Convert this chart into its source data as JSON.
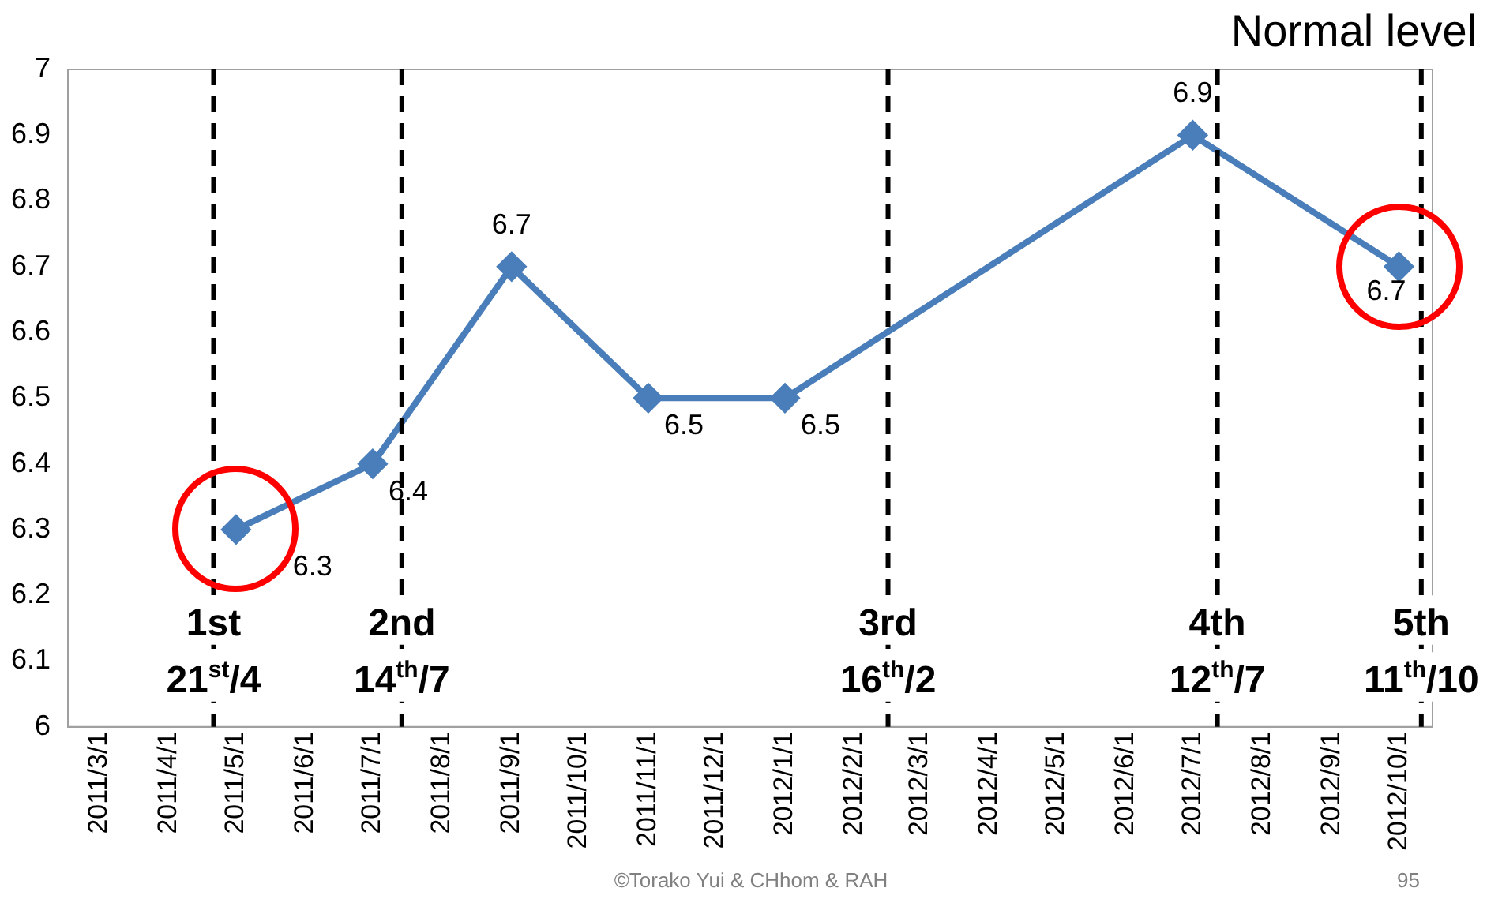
{
  "chart_data": {
    "type": "line",
    "x": [
      "2011-05",
      "2011-07",
      "2011-09",
      "2011-11",
      "2012-01",
      "2012-07",
      "2012-10"
    ],
    "series": [
      {
        "color": "#4a7ebb",
        "values": [
          6.3,
          6.4,
          6.7,
          6.5,
          6.5,
          6.9,
          6.7
        ]
      }
    ],
    "xlim": [
      "2011-02-15",
      "2012-10-16"
    ],
    "xticks": [
      {
        "value": "2011-03",
        "label": "2011/3/1"
      },
      {
        "value": "2011-04",
        "label": "2011/4/1"
      },
      {
        "value": "2011-05",
        "label": "2011/5/1"
      },
      {
        "value": "2011-06",
        "label": "2011/6/1"
      },
      {
        "value": "2011-07",
        "label": "2011/7/1"
      },
      {
        "value": "2011-08",
        "label": "2011/8/1"
      },
      {
        "value": "2011-09",
        "label": "2011/9/1"
      },
      {
        "value": "2011-10",
        "label": "2011/10/1"
      },
      {
        "value": "2011-11",
        "label": "2011/11/1"
      },
      {
        "value": "2011-12",
        "label": "2011/12/1"
      },
      {
        "value": "2012-01",
        "label": "2012/1/1"
      },
      {
        "value": "2012-02",
        "label": "2012/2/1"
      },
      {
        "value": "2012-03",
        "label": "2012/3/1"
      },
      {
        "value": "2012-04",
        "label": "2012/4/1"
      },
      {
        "value": "2012-05",
        "label": "2012/5/1"
      },
      {
        "value": "2012-06",
        "label": "2012/6/1"
      },
      {
        "value": "2012-07",
        "label": "2012/7/1"
      },
      {
        "value": "2012-08",
        "label": "2012/8/1"
      },
      {
        "value": "2012-09",
        "label": "2012/9/1"
      },
      {
        "value": "2012-10",
        "label": "2012/10/1"
      }
    ],
    "ylim": [
      6,
      7
    ],
    "yticks": [
      6,
      6.1,
      6.2,
      6.3,
      6.4,
      6.5,
      6.6,
      6.7,
      6.8,
      6.9,
      7
    ],
    "ref_lines": [
      {
        "axis": "x",
        "value": "2011-04-21",
        "label": "1st\n21$^{st}$/4",
        "color": "#000000",
        "line_style": "dashed"
      },
      {
        "axis": "x",
        "value": "2011-07-14",
        "label": "2nd\n14$^{th}$/7",
        "color": "#000000",
        "line_style": "dashed"
      },
      {
        "axis": "x",
        "value": "2012-02-16",
        "label": "3rd\n16$^{th}$/2",
        "color": "#000000",
        "line_style": "dashed"
      },
      {
        "axis": "x",
        "value": "2012-07-12",
        "label": "4th\n12$^{th}$/7",
        "color": "#000000",
        "line_style": "dashed"
      },
      {
        "axis": "x",
        "value": "2012-10-11",
        "label": "5th\n11$^{th}$/10",
        "color": "#000000",
        "line_style": "dashed"
      }
    ],
    "annotations": [
      "Normal level",
      "©Torako Yui & CHhom & RAH",
      "95"
    ],
    "data_labels": true,
    "marker": "diamond",
    "line_style": "solid",
    "grid": false,
    "legend": false
  }
}
